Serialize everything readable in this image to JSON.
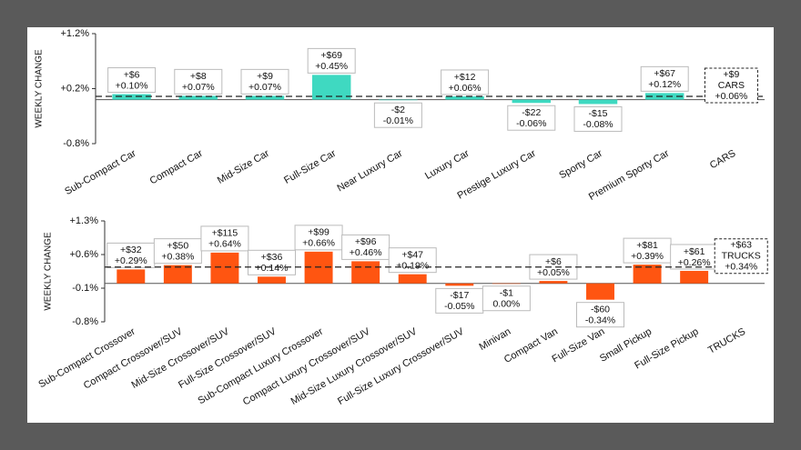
{
  "chart_data": [
    {
      "type": "bar",
      "y_label": "WEEKLY CHANGE",
      "color": "#3fd9c1",
      "categories": [
        "Sub-Compact Car",
        "Compact Car",
        "Mid-Size Car",
        "Full-Size Car",
        "Near Luxury Car",
        "Luxury Car",
        "Prestige Luxury Car",
        "Sporty Car",
        "Premium Sporty Car",
        "CARS"
      ],
      "values": [
        0.1,
        0.07,
        0.07,
        0.45,
        -0.01,
        0.06,
        -0.06,
        -0.08,
        0.12,
        0.06
      ],
      "value_labels": [
        "+0.10%",
        "+0.07%",
        "+0.07%",
        "+0.45%",
        "-0.01%",
        "+0.06%",
        "-0.06%",
        "-0.08%",
        "+0.12%",
        "+0.06%"
      ],
      "dollar_labels": [
        "+$6",
        "+$8",
        "+$9",
        "+$69",
        "-$2",
        "+$12",
        "-$22",
        "-$15",
        "+$67",
        "+$9"
      ],
      "ylim": [
        -0.8,
        1.2
      ],
      "yticks": [
        {
          "value": -0.8,
          "label": "-0.8%"
        },
        {
          "value": 0.2,
          "label": "+0.2%"
        },
        {
          "value": 1.2,
          "label": "+1.2%"
        }
      ]
    },
    {
      "type": "bar",
      "y_label": "WEEKLY CHANGE",
      "color": "#ff5511",
      "categories": [
        "Sub-Compact Crossover",
        "Compact Crossover/SUV",
        "Mid-Size Crossover/SUV",
        "Full-Size Crossover/SUV",
        "Sub-Compact Luxury Crossover",
        "Compact Luxury Crossover/SUV",
        "Mid-Size Luxury Crossover/SUV",
        "Full-Size Luxury Crossover/SUV",
        "Minivan",
        "Compact Van",
        "Full-Size Van",
        "Small Pickup",
        "Full-Size Pickup",
        "TRUCKS"
      ],
      "values": [
        0.29,
        0.38,
        0.64,
        0.14,
        0.66,
        0.46,
        0.19,
        -0.05,
        0.0,
        0.05,
        -0.34,
        0.39,
        0.26,
        0.34
      ],
      "value_labels": [
        "+0.29%",
        "+0.38%",
        "+0.64%",
        "+0.14%",
        "+0.66%",
        "+0.46%",
        "+0.19%",
        "-0.05%",
        "0.00%",
        "+0.05%",
        "-0.34%",
        "+0.39%",
        "+0.26%",
        "+0.34%"
      ],
      "dollar_labels": [
        "+$32",
        "+$50",
        "+$115",
        "+$36",
        "+$99",
        "+$96",
        "+$47",
        "-$17",
        "-$1",
        "+$6",
        "-$60",
        "+$81",
        "+$61",
        "+$63"
      ],
      "ylim": [
        -0.8,
        1.3
      ],
      "yticks": [
        {
          "value": -0.8,
          "label": "-0.8%"
        },
        {
          "value": -0.1,
          "label": "-0.1%"
        },
        {
          "value": 0.6,
          "label": "+0.6%"
        },
        {
          "value": 1.3,
          "label": "+1.3%"
        }
      ]
    }
  ]
}
